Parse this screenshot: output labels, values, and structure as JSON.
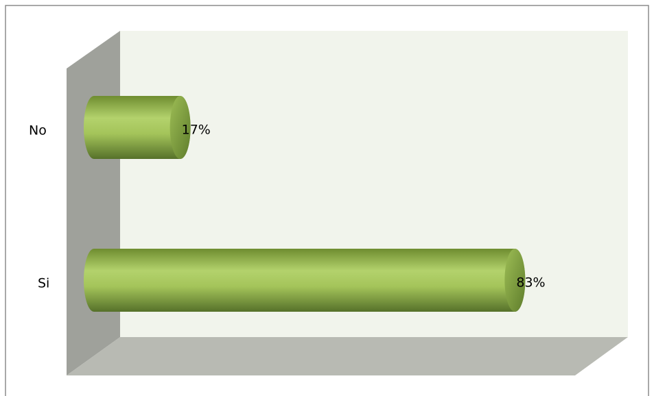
{
  "chart_data": {
    "type": "bar",
    "orientation": "horizontal",
    "categories": [
      "No",
      "Si"
    ],
    "values": [
      17,
      83
    ],
    "value_labels": [
      "17%",
      "83%"
    ],
    "color": "#a9c95f"
  }
}
